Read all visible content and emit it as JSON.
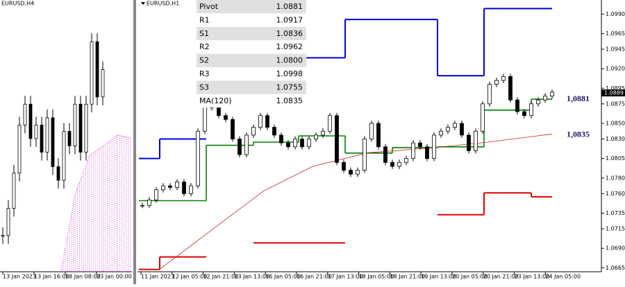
{
  "left_chart": {
    "title": "EURUSD,H4",
    "xlabels": [
      "13 Jan 2023",
      "13 Jan 16:00",
      "18 Jan 08:00",
      "23 Jan 00:00"
    ],
    "ylim": [
      1.07,
      1.1
    ],
    "closes": [
      1.074,
      1.077,
      1.0809,
      1.0862,
      1.0885,
      1.0847,
      1.0862,
      1.0832,
      1.087,
      1.0816,
      1.0801,
      1.0855,
      1.0839,
      1.0885,
      1.0832,
      1.0885,
      1.0954,
      1.0893,
      1.0923
    ],
    "cloud_top": [
      1.0702,
      1.0786,
      1.0828,
      1.0839,
      1.0851,
      1.0847
    ]
  },
  "right_chart": {
    "title": "EURUSD,H1",
    "xlabels": [
      "11 Jan 2023",
      "12 Jan 05:00",
      "12 Jan 21:00",
      "13 Jan 13:00",
      "16 Jan 05:00",
      "16 Jan 21:00",
      "17 Jan 13:00",
      "18 Jan 05:00",
      "18 Jan 21:00",
      "19 Jan 13:00",
      "20 Jan 05:00",
      "20 Jan 21:00",
      "23 Jan 13:00",
      "24 Jan 05:00"
    ],
    "ylim": [
      1.066,
      1.1008
    ],
    "yticks": [
      {
        "value": 1.099,
        "label": "1.0990"
      },
      1.0965,
      1.0945,
      {
        "value": 1.092,
        "label": "1.0920"
      },
      1.0895,
      1.0875,
      {
        "value": 1.085,
        "label": "1.0850"
      },
      {
        "value": 1.083,
        "label": "1.0830"
      },
      1.0805,
      {
        "value": 1.078,
        "label": "1.0780"
      },
      {
        "value": 1.076,
        "label": "1.0760"
      },
      1.0735,
      1.0715,
      {
        "value": 1.069,
        "label": "1.0690"
      },
      1.0665
    ],
    "closes": [
      1.0745,
      1.0752,
      1.0765,
      1.077,
      1.0768,
      1.0775,
      1.076,
      1.077,
      1.084,
      1.0875,
      1.087,
      1.086,
      1.0855,
      1.083,
      1.081,
      1.0835,
      1.0845,
      1.086,
      1.0845,
      1.0835,
      1.0825,
      1.082,
      1.083,
      1.082,
      1.083,
      1.0835,
      1.084,
      1.086,
      1.08,
      1.079,
      1.0785,
      1.079,
      1.083,
      1.085,
      1.082,
      1.08,
      1.0795,
      1.08,
      1.0805,
      1.0825,
      1.082,
      1.0805,
      1.0835,
      1.084,
      1.0845,
      1.085,
      1.0835,
      1.0815,
      1.084,
      1.0875,
      1.09,
      1.0905,
      1.091,
      1.088,
      1.0865,
      1.086,
      1.0875,
      1.088,
      1.0885,
      1.089
    ],
    "pivot": [
      1.0751,
      1.0751,
      1.0822,
      1.0826,
      1.0834,
      1.0812,
      1.0819,
      1.082,
      1.0867,
      1.0881
    ],
    "resistance": [
      1.0805,
      1.083,
      null,
      null,
      1.0934,
      1.0983,
      1.0983,
      1.0911,
      1.0997,
      1.0997
    ],
    "support": [
      1.0663,
      1.0679,
      null,
      1.0697,
      1.0697,
      null,
      null,
      1.0733,
      1.0761,
      1.0756
    ],
    "ma": [
      1.06632,
      1.07103,
      1.07636,
      1.07947,
      1.08124,
      1.08186,
      1.08257,
      1.08364
    ],
    "last_price": {
      "value": 1.0889,
      "label": "1.0889"
    },
    "annotations": [
      {
        "value": 1.0881,
        "label": "1,0881"
      },
      {
        "value": 1.0835,
        "label": "1,0835"
      }
    ]
  },
  "table": {
    "rows": [
      [
        "Pivot",
        "1.0881"
      ],
      [
        "R1",
        "1.0917"
      ],
      [
        "S1",
        "1.0836"
      ],
      [
        "R2",
        "1.0962"
      ],
      [
        "S2",
        "1.0800"
      ],
      [
        "R3",
        "1.0998"
      ],
      [
        "S3",
        "1.0755"
      ],
      [
        "MA(120)",
        "1.0835"
      ]
    ]
  }
}
